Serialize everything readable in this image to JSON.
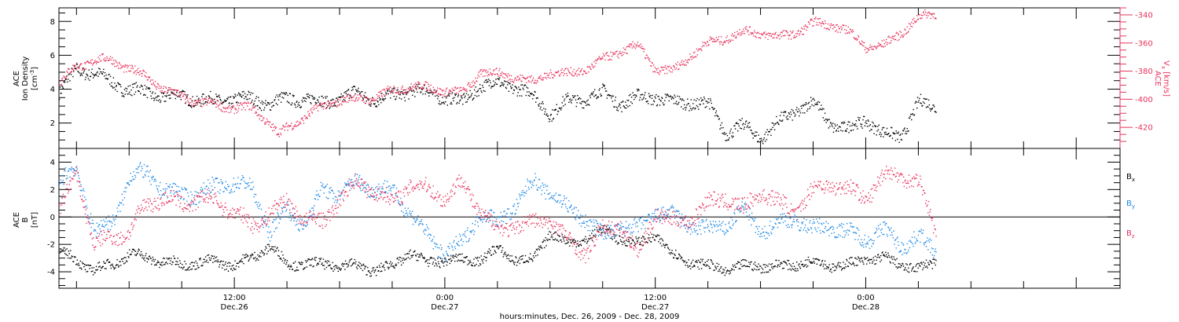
{
  "chart_data": {
    "type": "scatter",
    "xlabel": "hours:minutes, Dec. 26, 2009 - Dec. 28, 2009",
    "x_ticks": [
      {
        "time": "12:00",
        "date": "Dec.26",
        "hour": 12
      },
      {
        "time": "0:00",
        "date": "Dec.27",
        "hour": 24
      },
      {
        "time": "12:00",
        "date": "Dec.27",
        "hour": 36
      },
      {
        "time": "0:00",
        "date": "Dec.28",
        "hour": 48
      }
    ],
    "xlim_hours": [
      2.0,
      62.5
    ],
    "colors": {
      "black": "#000000",
      "red": "#e8335c",
      "blue": "#1e88e5"
    },
    "panels": [
      {
        "id": "density",
        "ylabel_lines": [
          "ACE",
          "Ion Density"
        ],
        "ylabel_unit_base": "[cm",
        "ylabel_unit_sup": "-3",
        "ylabel_unit_close": "]",
        "ylim": [
          0.5,
          8.8
        ],
        "y_ticks": [
          "2",
          "4",
          "6",
          "8"
        ],
        "y_tick_values": [
          2,
          4,
          6,
          8
        ],
        "right_axis": {
          "ylabel_lines": [
            "ACE"
          ],
          "ylabel_unit_base": "V",
          "ylabel_unit_sub": "x",
          "ylabel_unit_rest": " [km/s]",
          "ylim": [
            -435,
            -335
          ],
          "y_ticks": [
            "-340",
            "-360",
            "-380",
            "-400",
            "-420"
          ],
          "y_tick_values": [
            -340,
            -360,
            -380,
            -400,
            -420
          ]
        },
        "series": [
          {
            "color_key": "black",
            "x": [
              2.0,
              3.0,
              4.0,
              5.0,
              6.0,
              7.0,
              8.0,
              9.0,
              10.0,
              11.0,
              12.0,
              13.0,
              14.0,
              15.0,
              16.0,
              17.0,
              18.0,
              19.0,
              20.0,
              21.0,
              22.0,
              23.0,
              24.0,
              25.0,
              26.0,
              27.0,
              28.0,
              29.0,
              30.0,
              31.0,
              32.0,
              33.0,
              34.0,
              35.0,
              36.0,
              37.0,
              38.0,
              39.0,
              40.0,
              41.0,
              42.0,
              43.0,
              44.0,
              45.0,
              46.0,
              47.0,
              48.0,
              49.0,
              50.0,
              51.0,
              52.0
            ],
            "values": [
              3.8,
              5.2,
              5.0,
              4.4,
              4.0,
              3.8,
              3.6,
              3.6,
              3.4,
              3.3,
              3.5,
              3.4,
              3.2,
              3.4,
              3.5,
              3.2,
              3.5,
              3.8,
              3.4,
              3.6,
              4.0,
              3.8,
              3.6,
              3.2,
              4.3,
              4.3,
              4.2,
              3.6,
              2.6,
              3.3,
              3.5,
              3.8,
              3.2,
              3.5,
              3.6,
              3.2,
              3.3,
              3.1,
              1.5,
              1.8,
              1.2,
              2.0,
              2.8,
              3.2,
              2.0,
              1.6,
              2.3,
              1.3,
              1.3,
              3.2,
              3.0
            ]
          },
          {
            "color_key": "red",
            "axis": "right",
            "x": [
              2.0,
              3.0,
              4.0,
              5.0,
              6.0,
              7.0,
              8.0,
              9.0,
              10.0,
              11.0,
              12.0,
              13.0,
              13.8,
              14.5,
              15.0,
              16.0,
              17.0,
              18.0,
              19.0,
              20.0,
              21.0,
              22.0,
              23.0,
              24.0,
              25.0,
              26.0,
              27.0,
              28.0,
              29.0,
              30.0,
              31.0,
              32.0,
              33.0,
              34.0,
              35.0,
              36.0,
              37.0,
              38.0,
              39.0,
              40.0,
              41.0,
              42.0,
              43.0,
              44.0,
              45.0,
              46.0,
              47.0,
              48.0,
              49.0,
              50.0,
              51.0,
              52.0
            ],
            "values": [
              -388,
              -376,
              -372,
              -372,
              -378,
              -384,
              -393,
              -398,
              -402,
              -404,
              -406,
              -406,
              -414,
              -425,
              -420,
              -412,
              -405,
              -400,
              -400,
              -398,
              -394,
              -390,
              -392,
              -393,
              -396,
              -380,
              -382,
              -383,
              -388,
              -380,
              -382,
              -378,
              -372,
              -365,
              -362,
              -378,
              -380,
              -368,
              -360,
              -356,
              -352,
              -352,
              -356,
              -352,
              -346,
              -346,
              -352,
              -362,
              -362,
              -352,
              -342,
              -338
            ]
          }
        ]
      },
      {
        "id": "bfield",
        "ylabel_lines": [
          "ACE",
          "B"
        ],
        "ylabel_unit_base": "[nT]",
        "ylim": [
          -5.2,
          5.0
        ],
        "y_ticks": [
          "-4",
          "-2",
          "0",
          "2",
          "4"
        ],
        "y_tick_values": [
          -4,
          -2,
          0,
          2,
          4
        ],
        "legend": [
          {
            "label_base": "B",
            "label_sub": "x",
            "color_key": "black"
          },
          {
            "label_base": "B",
            "label_sub": "y",
            "color_key": "blue"
          },
          {
            "label_base": "B",
            "label_sub": "z",
            "color_key": "red"
          }
        ],
        "series": [
          {
            "name": "Bx",
            "color_key": "black",
            "x": [
              2.0,
              3.0,
              4.0,
              5.0,
              6.0,
              7.0,
              8.0,
              9.0,
              10.0,
              11.0,
              12.0,
              13.0,
              14.0,
              15.0,
              16.0,
              17.0,
              18.0,
              19.0,
              20.0,
              21.0,
              22.0,
              23.0,
              24.0,
              25.0,
              26.0,
              27.0,
              28.0,
              29.0,
              30.0,
              31.0,
              32.0,
              33.0,
              34.0,
              35.0,
              36.0,
              37.0,
              38.0,
              39.0,
              40.0,
              41.0,
              42.0,
              43.0,
              44.0,
              45.0,
              46.0,
              47.0,
              48.0,
              49.0,
              50.0,
              51.0,
              52.0
            ],
            "values": [
              -2.5,
              -3.2,
              -3.8,
              -3.5,
              -2.6,
              -3.0,
              -3.2,
              -3.5,
              -3.2,
              -3.3,
              -3.4,
              -3.0,
              -2.0,
              -3.5,
              -3.3,
              -3.5,
              -3.4,
              -3.6,
              -3.8,
              -3.6,
              -2.5,
              -3.4,
              -3.0,
              -3.2,
              -3.0,
              -2.4,
              -3.0,
              -3.2,
              -1.0,
              -2.0,
              -1.5,
              -1.0,
              -1.5,
              -2.0,
              -1.2,
              -2.8,
              -3.2,
              -3.6,
              -3.8,
              -3.6,
              -3.5,
              -3.6,
              -3.4,
              -3.2,
              -3.5,
              -3.5,
              -3.0,
              -3.0,
              -3.4,
              -3.8,
              -3.2
            ]
          },
          {
            "name": "By",
            "color_key": "blue",
            "x": [
              2.0,
              3.0,
              4.0,
              5.0,
              6.0,
              7.0,
              8.0,
              9.0,
              10.0,
              11.0,
              12.0,
              13.0,
              14.0,
              15.0,
              16.0,
              17.0,
              18.0,
              19.0,
              20.0,
              21.0,
              22.0,
              23.0,
              24.0,
              25.0,
              26.0,
              27.0,
              28.0,
              29.0,
              30.0,
              31.0,
              32.0,
              33.0,
              34.0,
              35.0,
              36.0,
              37.0,
              38.0,
              39.0,
              40.0,
              41.0,
              42.0,
              43.0,
              44.0,
              45.0,
              46.0,
              47.0,
              48.0,
              49.0,
              50.0,
              51.0,
              52.0
            ],
            "values": [
              2.5,
              3.5,
              -1.0,
              -0.5,
              3.0,
              3.2,
              2.0,
              1.6,
              1.8,
              2.2,
              2.6,
              2.0,
              -1.0,
              0.5,
              -0.5,
              2.0,
              1.8,
              2.5,
              2.2,
              1.8,
              0.5,
              -1.5,
              -2.5,
              -2.0,
              0.5,
              -0.5,
              1.0,
              2.5,
              2.0,
              0.5,
              0.0,
              -1.5,
              -0.5,
              -1.0,
              0.5,
              0.0,
              -0.5,
              -1.0,
              -0.5,
              0.5,
              -1.0,
              -0.5,
              0.0,
              -1.0,
              -0.5,
              -1.2,
              -1.5,
              -1.0,
              -2.0,
              -1.5,
              -2.5
            ]
          },
          {
            "name": "Bz",
            "color_key": "red",
            "x": [
              2.0,
              3.0,
              4.0,
              5.0,
              6.0,
              7.0,
              8.0,
              9.0,
              10.0,
              11.0,
              12.0,
              13.0,
              14.0,
              15.0,
              16.0,
              17.0,
              18.0,
              19.0,
              20.0,
              21.0,
              22.0,
              23.0,
              24.0,
              25.0,
              26.0,
              27.0,
              28.0,
              29.0,
              30.0,
              31.0,
              32.0,
              33.0,
              34.0,
              35.0,
              36.0,
              37.0,
              38.0,
              39.0,
              40.0,
              41.0,
              42.0,
              43.0,
              44.0,
              45.0,
              46.0,
              47.0,
              48.0,
              49.0,
              50.0,
              51.0,
              52.0
            ],
            "values": [
              0.5,
              3.2,
              -2.0,
              -1.5,
              -1.0,
              1.0,
              1.5,
              0.8,
              1.5,
              1.0,
              0.5,
              -0.8,
              0.5,
              1.0,
              0.0,
              -0.5,
              1.5,
              2.5,
              2.0,
              1.0,
              2.5,
              2.0,
              1.5,
              2.5,
              0.5,
              -1.0,
              -0.5,
              -0.5,
              0.0,
              -1.8,
              -2.5,
              -1.0,
              -0.5,
              -2.8,
              0.5,
              -0.5,
              0.0,
              1.0,
              1.5,
              0.5,
              2.0,
              1.0,
              0.5,
              2.0,
              2.5,
              2.0,
              1.5,
              3.0,
              3.2,
              2.5,
              -1.0
            ]
          }
        ]
      }
    ]
  }
}
